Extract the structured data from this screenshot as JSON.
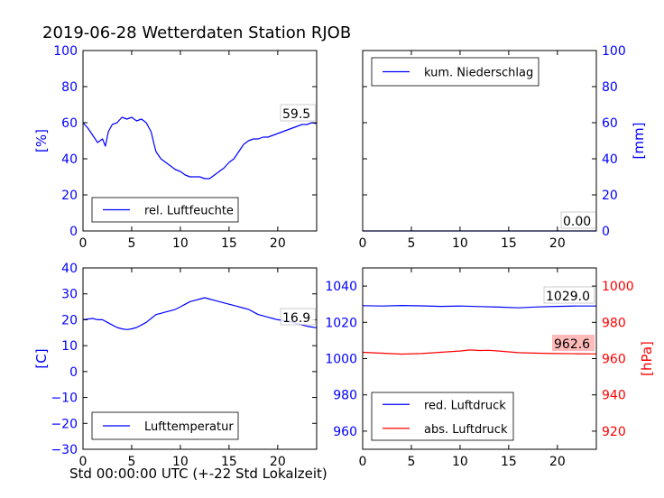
{
  "title": "2019-06-28 Wetterdaten Station RJOB",
  "xlabel": "Std 00:00:00 UTC (+-22 Std Lokalzeit)",
  "colors": {
    "blue": "#0000ff",
    "red": "#ff0000",
    "axis": "#000000",
    "label_box_red": "#ffb3b3"
  },
  "chart_data": [
    {
      "id": "humidity",
      "type": "line",
      "x_ticks": [
        0,
        5,
        10,
        15,
        20
      ],
      "xlim": [
        0,
        24
      ],
      "ylabel": "[%]",
      "ylim": [
        0,
        100
      ],
      "y_ticks": [
        0,
        20,
        40,
        60,
        80,
        100
      ],
      "axis_color": "#0000ff",
      "legend": {
        "position": "lower-left",
        "entries": [
          {
            "name": "rel. Luftfeuchte",
            "color": "#0000ff"
          }
        ]
      },
      "last_value_label": "59.5",
      "series": [
        {
          "name": "rel. Luftfeuchte",
          "color": "#0000ff",
          "x": [
            0,
            0.5,
            1,
            1.5,
            2,
            2.3,
            2.6,
            3,
            3.5,
            4,
            4.5,
            5,
            5.5,
            6,
            6.5,
            7,
            7.3,
            7.5,
            8,
            8.5,
            9,
            9.5,
            10,
            10.5,
            11,
            11.5,
            12,
            12.5,
            13,
            13.5,
            14,
            14.5,
            15,
            15.5,
            16,
            16.5,
            17,
            17.5,
            18,
            18.5,
            19,
            19.5,
            20,
            20.5,
            21,
            21.5,
            22,
            22.5,
            23,
            23.5,
            24
          ],
          "y": [
            60,
            57,
            53,
            49,
            51,
            47,
            55,
            59,
            60,
            63,
            62,
            63,
            61,
            62,
            60,
            55,
            48,
            44,
            40,
            38,
            36,
            34,
            33,
            31,
            30,
            30,
            30,
            29,
            29,
            31,
            33,
            35,
            38,
            40,
            44,
            48,
            50,
            51,
            51,
            52,
            52,
            53,
            54,
            55,
            56,
            57,
            58,
            59,
            59,
            60,
            59.5
          ]
        }
      ]
    },
    {
      "id": "precipitation",
      "type": "line",
      "x_ticks": [
        0,
        5,
        10,
        15,
        20
      ],
      "xlim": [
        0,
        24
      ],
      "ylabel": "[mm]",
      "ylim": [
        0,
        100
      ],
      "y_ticks": [
        0,
        20,
        40,
        60,
        80,
        100
      ],
      "axis_color": "#0000ff",
      "y_axis_side": "right",
      "legend": {
        "position": "upper-left",
        "entries": [
          {
            "name": "kum. Niederschlag",
            "color": "#0000ff"
          }
        ]
      },
      "last_value_label": "0.00",
      "series": [
        {
          "name": "kum. Niederschlag",
          "color": "#0000ff",
          "x": [
            0,
            24
          ],
          "y": [
            0,
            0
          ]
        }
      ]
    },
    {
      "id": "temperature",
      "type": "line",
      "x_ticks": [
        0,
        5,
        10,
        15,
        20
      ],
      "xlim": [
        0,
        24
      ],
      "ylabel": "[C]",
      "ylim": [
        -30,
        40
      ],
      "y_ticks": [
        -30,
        -20,
        -10,
        0,
        10,
        20,
        30,
        40
      ],
      "y_tick_labels": [
        "−30",
        "−20",
        "−10",
        "0",
        "10",
        "20",
        "30",
        "40"
      ],
      "axis_color": "#0000ff",
      "legend": {
        "position": "lower-left",
        "entries": [
          {
            "name": "Lufttemperatur",
            "color": "#0000ff"
          }
        ]
      },
      "last_value_label": "16.9",
      "series": [
        {
          "name": "Lufttemperatur",
          "color": "#0000ff",
          "x": [
            0,
            0.5,
            1,
            1.5,
            2,
            2.5,
            3,
            3.5,
            4,
            4.5,
            5,
            5.5,
            6,
            6.5,
            7,
            7.5,
            8,
            8.5,
            9,
            9.5,
            10,
            10.5,
            11,
            11.5,
            12,
            12.5,
            13,
            13.5,
            14,
            14.5,
            15,
            15.5,
            16,
            16.5,
            17,
            17.5,
            18,
            18.5,
            19,
            19.5,
            20,
            20.5,
            21,
            21.5,
            22,
            22.5,
            23,
            23.5,
            24
          ],
          "y": [
            20,
            20.3,
            20.5,
            20,
            20,
            19,
            18,
            17,
            16.5,
            16.2,
            16.5,
            17,
            18,
            19,
            20.5,
            22,
            22.5,
            23,
            23.5,
            24,
            25,
            26,
            27,
            27.5,
            28,
            28.5,
            28,
            27.5,
            27,
            26.5,
            26,
            25.5,
            25,
            24.5,
            24,
            23,
            22,
            21.5,
            21,
            20.5,
            20,
            19.8,
            19.5,
            19,
            18.5,
            18,
            17.5,
            17.2,
            16.9
          ]
        }
      ]
    },
    {
      "id": "pressure",
      "type": "line",
      "x_ticks": [
        0,
        5,
        10,
        15,
        20
      ],
      "xlim": [
        0,
        24
      ],
      "ylim": [
        950,
        1050
      ],
      "y_ticks": [
        960,
        980,
        1000,
        1020,
        1040
      ],
      "axis_color": "#0000ff",
      "ylabel_right": "[hPa]",
      "ylim_right": [
        910,
        1010
      ],
      "y_ticks_right": [
        920,
        940,
        960,
        980,
        1000
      ],
      "axis_color_right": "#ff0000",
      "legend": {
        "position": "lower-left",
        "entries": [
          {
            "name": "red. Luftdruck",
            "color": "#0000ff"
          },
          {
            "name": "abs. Luftdruck",
            "color": "#ff0000"
          }
        ]
      },
      "last_value_labels": [
        "1029.0",
        "962.6"
      ],
      "series": [
        {
          "name": "red. Luftdruck",
          "color": "#0000ff",
          "axis": "left",
          "x": [
            0,
            2,
            4,
            6,
            8,
            10,
            12,
            14,
            16,
            18,
            20,
            22,
            24
          ],
          "y": [
            1029.2,
            1029.0,
            1029.3,
            1029.1,
            1028.8,
            1029.0,
            1028.7,
            1028.4,
            1028.0,
            1028.5,
            1028.8,
            1029.0,
            1029.0
          ]
        },
        {
          "name": "abs. Luftdruck",
          "color": "#ff0000",
          "axis": "right",
          "x": [
            0,
            2,
            4,
            6,
            8,
            10,
            11,
            12,
            13,
            14,
            16,
            18,
            20,
            22,
            24
          ],
          "y": [
            963.5,
            963.0,
            962.5,
            962.8,
            963.5,
            964.2,
            964.8,
            964.5,
            964.6,
            964.2,
            963.3,
            963.0,
            962.8,
            962.7,
            962.6
          ]
        }
      ]
    }
  ]
}
